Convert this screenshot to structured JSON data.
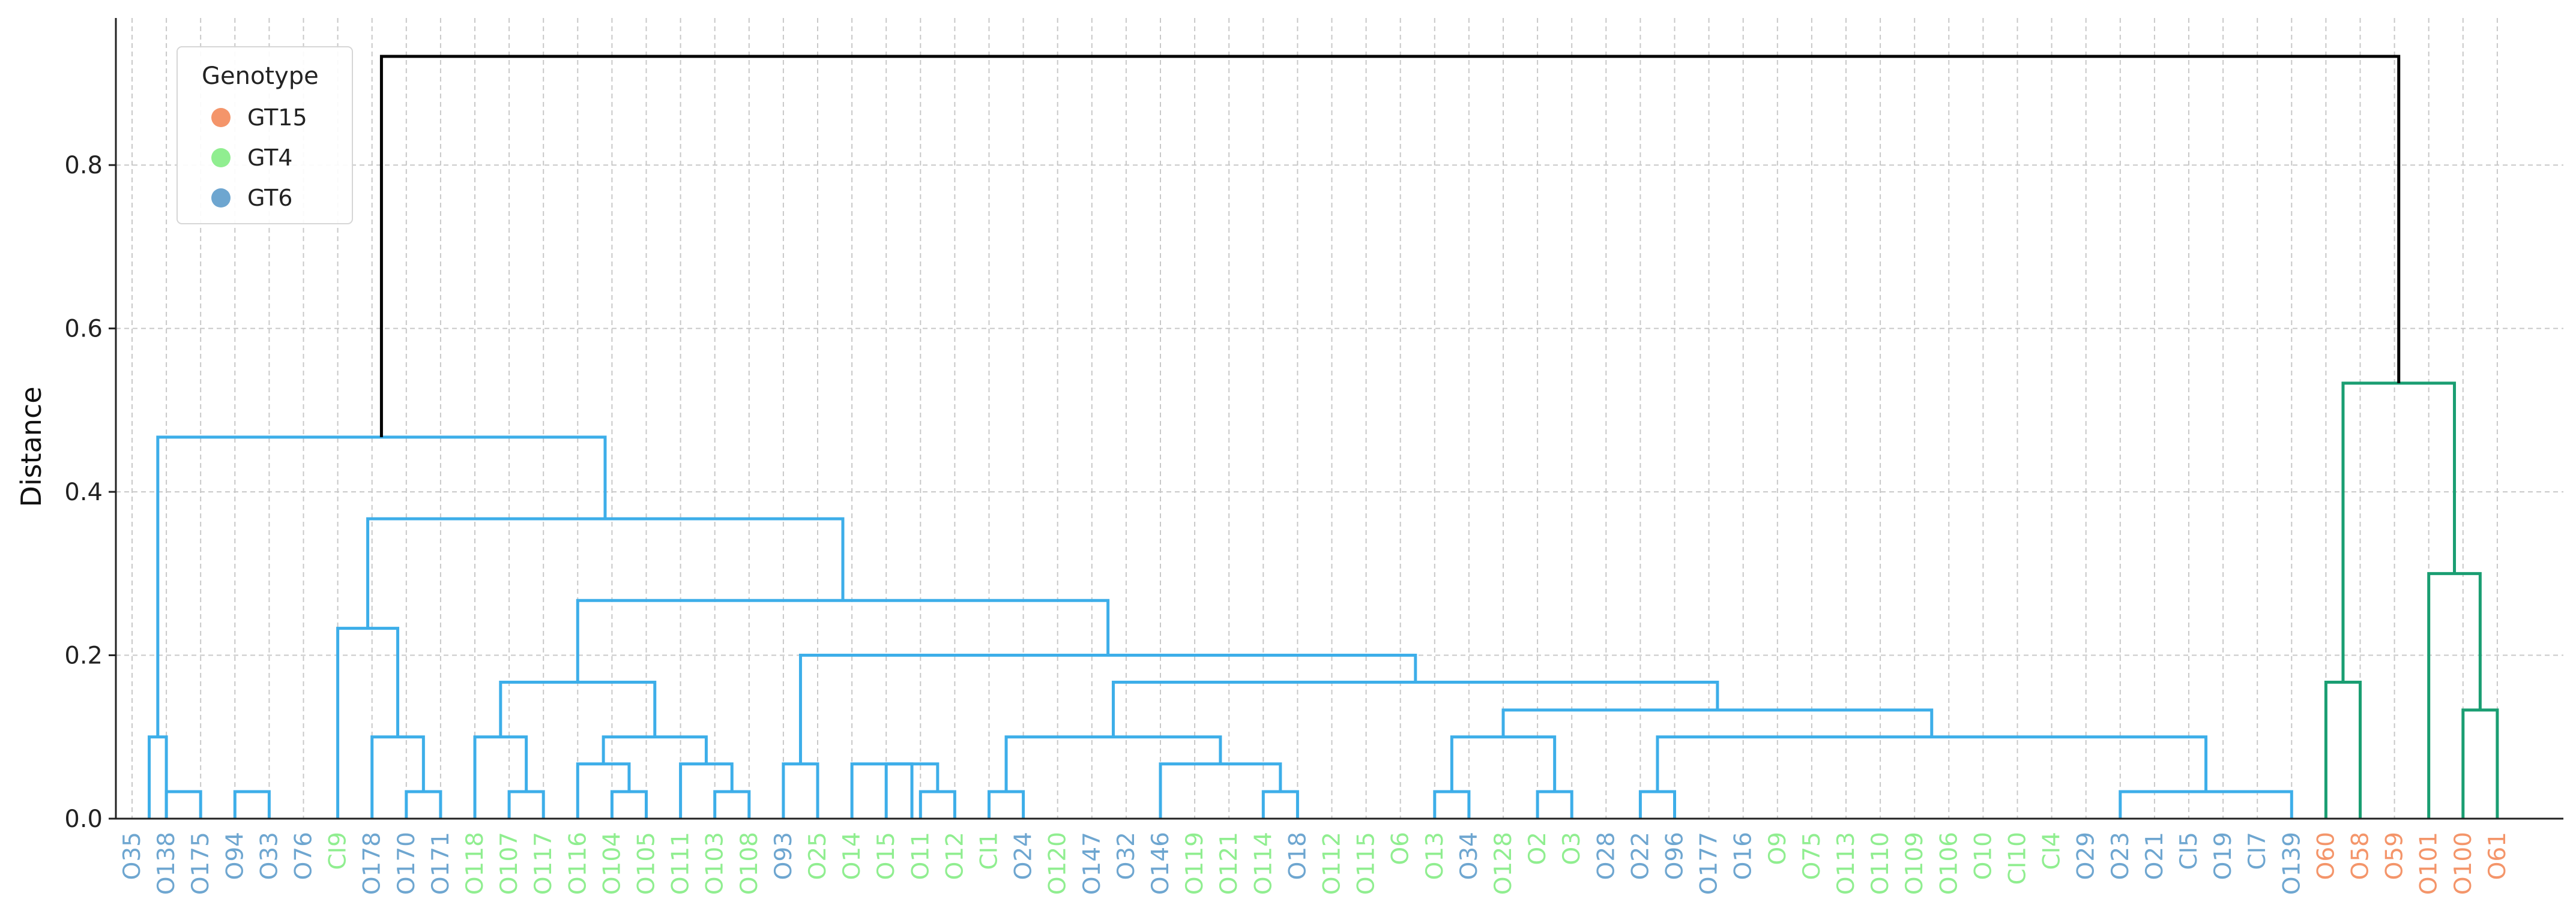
{
  "chart_data": {
    "type": "dendrogram",
    "ylabel": "Distance",
    "ylim": [
      0,
      0.98
    ],
    "yticks": [
      0.0,
      0.2,
      0.4,
      0.6,
      0.8
    ],
    "grid": true,
    "legend": {
      "title": "Genotype",
      "placement": "top-left",
      "entries": [
        {
          "label": "GT15",
          "color": "#f4956a"
        },
        {
          "label": "GT4",
          "color": "#90ee90"
        },
        {
          "label": "GT6",
          "color": "#6ea6d0"
        }
      ]
    },
    "colors": {
      "cluster_gt6_gt4": "#3daee9",
      "cluster_gt15": "#1a9e72",
      "root": "#000000"
    },
    "leaves": [
      {
        "label": "O35",
        "genotype": "GT6"
      },
      {
        "label": "O138",
        "genotype": "GT6"
      },
      {
        "label": "O175",
        "genotype": "GT6"
      },
      {
        "label": "O94",
        "genotype": "GT6"
      },
      {
        "label": "O33",
        "genotype": "GT6"
      },
      {
        "label": "O76",
        "genotype": "GT6"
      },
      {
        "label": "CI9",
        "genotype": "GT4"
      },
      {
        "label": "O178",
        "genotype": "GT6"
      },
      {
        "label": "O170",
        "genotype": "GT6"
      },
      {
        "label": "O171",
        "genotype": "GT6"
      },
      {
        "label": "O118",
        "genotype": "GT4"
      },
      {
        "label": "O107",
        "genotype": "GT4"
      },
      {
        "label": "O117",
        "genotype": "GT4"
      },
      {
        "label": "O116",
        "genotype": "GT4"
      },
      {
        "label": "O104",
        "genotype": "GT4"
      },
      {
        "label": "O105",
        "genotype": "GT4"
      },
      {
        "label": "O111",
        "genotype": "GT4"
      },
      {
        "label": "O103",
        "genotype": "GT4"
      },
      {
        "label": "O108",
        "genotype": "GT4"
      },
      {
        "label": "O93",
        "genotype": "GT6"
      },
      {
        "label": "O25",
        "genotype": "GT4"
      },
      {
        "label": "O14",
        "genotype": "GT4"
      },
      {
        "label": "O15",
        "genotype": "GT4"
      },
      {
        "label": "O11",
        "genotype": "GT4"
      },
      {
        "label": "O12",
        "genotype": "GT4"
      },
      {
        "label": "CI1",
        "genotype": "GT4"
      },
      {
        "label": "O24",
        "genotype": "GT6"
      },
      {
        "label": "O120",
        "genotype": "GT4"
      },
      {
        "label": "O147",
        "genotype": "GT6"
      },
      {
        "label": "O32",
        "genotype": "GT6"
      },
      {
        "label": "O146",
        "genotype": "GT6"
      },
      {
        "label": "O119",
        "genotype": "GT4"
      },
      {
        "label": "O121",
        "genotype": "GT4"
      },
      {
        "label": "O114",
        "genotype": "GT4"
      },
      {
        "label": "O18",
        "genotype": "GT6"
      },
      {
        "label": "O112",
        "genotype": "GT4"
      },
      {
        "label": "O115",
        "genotype": "GT4"
      },
      {
        "label": "O6",
        "genotype": "GT4"
      },
      {
        "label": "O13",
        "genotype": "GT4"
      },
      {
        "label": "O34",
        "genotype": "GT6"
      },
      {
        "label": "O128",
        "genotype": "GT4"
      },
      {
        "label": "O2",
        "genotype": "GT4"
      },
      {
        "label": "O3",
        "genotype": "GT4"
      },
      {
        "label": "O28",
        "genotype": "GT6"
      },
      {
        "label": "O22",
        "genotype": "GT6"
      },
      {
        "label": "O96",
        "genotype": "GT6"
      },
      {
        "label": "O177",
        "genotype": "GT6"
      },
      {
        "label": "O16",
        "genotype": "GT6"
      },
      {
        "label": "O9",
        "genotype": "GT4"
      },
      {
        "label": "O75",
        "genotype": "GT4"
      },
      {
        "label": "O113",
        "genotype": "GT4"
      },
      {
        "label": "O110",
        "genotype": "GT4"
      },
      {
        "label": "O109",
        "genotype": "GT4"
      },
      {
        "label": "O106",
        "genotype": "GT4"
      },
      {
        "label": "O10",
        "genotype": "GT4"
      },
      {
        "label": "CI10",
        "genotype": "GT4"
      },
      {
        "label": "CI4",
        "genotype": "GT4"
      },
      {
        "label": "O29",
        "genotype": "GT6"
      },
      {
        "label": "O23",
        "genotype": "GT6"
      },
      {
        "label": "O21",
        "genotype": "GT6"
      },
      {
        "label": "CI5",
        "genotype": "GT6"
      },
      {
        "label": "O19",
        "genotype": "GT6"
      },
      {
        "label": "CI7",
        "genotype": "GT6"
      },
      {
        "label": "O139",
        "genotype": "GT6"
      },
      {
        "label": "O60",
        "genotype": "GT15"
      },
      {
        "label": "O58",
        "genotype": "GT15"
      },
      {
        "label": "O59",
        "genotype": "GT15"
      },
      {
        "label": "O101",
        "genotype": "GT15"
      },
      {
        "label": "O100",
        "genotype": "GT15"
      },
      {
        "label": "O61",
        "genotype": "GT15"
      }
    ],
    "merges": [
      {
        "left": 1,
        "right": 2,
        "height": 0.033,
        "color": "cluster_gt6_gt4"
      },
      {
        "left": 1,
        "right": 0.5,
        "height": 0.1,
        "color": "cluster_gt6_gt4"
      },
      {
        "left": 3,
        "right": 4,
        "height": 0.033,
        "color": "cluster_gt6_gt4"
      },
      {
        "left": 8,
        "right": 9,
        "height": 0.033,
        "color": "cluster_gt6_gt4"
      },
      {
        "left": 7,
        "right": 8.5,
        "height": 0.1,
        "color": "cluster_gt6_gt4"
      },
      {
        "left": 6,
        "right": 7.75,
        "height": 0.233,
        "color": "cluster_gt6_gt4"
      },
      {
        "left": 11,
        "right": 12,
        "height": 0.033,
        "color": "cluster_gt6_gt4"
      },
      {
        "left": 10,
        "right": 11.5,
        "height": 0.1,
        "color": "cluster_gt6_gt4"
      },
      {
        "left": 14,
        "right": 15,
        "height": 0.033,
        "color": "cluster_gt6_gt4"
      },
      {
        "left": 13,
        "right": 14.5,
        "height": 0.067,
        "color": "cluster_gt6_gt4"
      },
      {
        "left": 17,
        "right": 18,
        "height": 0.033,
        "color": "cluster_gt6_gt4"
      },
      {
        "left": 16,
        "right": 17.5,
        "height": 0.067,
        "color": "cluster_gt6_gt4"
      },
      {
        "left": 13.75,
        "right": 16.75,
        "height": 0.1,
        "color": "cluster_gt6_gt4"
      },
      {
        "left": 10.75,
        "right": 15.25,
        "height": 0.167,
        "color": "cluster_gt6_gt4"
      },
      {
        "left": 23,
        "right": 24,
        "height": 0.033,
        "color": "cluster_gt6_gt4"
      },
      {
        "left": 22,
        "right": 23.5,
        "height": 0.067,
        "color": "cluster_gt6_gt4"
      },
      {
        "left": 21,
        "right": 22.75,
        "height": 0.067,
        "color": "cluster_gt6_gt4"
      },
      {
        "left": 19,
        "right": 20,
        "height": 0.067,
        "color": "cluster_gt6_gt4"
      },
      {
        "left": 25,
        "right": 26,
        "height": 0.033,
        "color": "cluster_gt6_gt4"
      },
      {
        "left": 33,
        "right": 34,
        "height": 0.033,
        "color": "cluster_gt6_gt4"
      },
      {
        "left": 30,
        "right": 33.5,
        "height": 0.067,
        "color": "cluster_gt6_gt4"
      },
      {
        "left": 25.5,
        "right": 31.75,
        "height": 0.1,
        "color": "cluster_gt6_gt4"
      },
      {
        "left": 38,
        "right": 39,
        "height": 0.033,
        "color": "cluster_gt6_gt4"
      },
      {
        "left": 41,
        "right": 42,
        "height": 0.033,
        "color": "cluster_gt6_gt4"
      },
      {
        "left": 38.5,
        "right": 41.5,
        "height": 0.1,
        "color": "cluster_gt6_gt4"
      },
      {
        "left": 44,
        "right": 45,
        "height": 0.033,
        "color": "cluster_gt6_gt4"
      },
      {
        "left": 58,
        "right": 63,
        "height": 0.033,
        "color": "cluster_gt6_gt4"
      },
      {
        "left": 44.5,
        "right": 60.5,
        "height": 0.1,
        "color": "cluster_gt6_gt4"
      },
      {
        "left": 40,
        "right": 52.5,
        "height": 0.133,
        "color": "cluster_gt6_gt4"
      },
      {
        "left": 28.625,
        "right": 46.25,
        "height": 0.167,
        "color": "cluster_gt6_gt4"
      },
      {
        "left": 19.5,
        "right": 37.44,
        "height": 0.2,
        "color": "cluster_gt6_gt4"
      },
      {
        "left": 13,
        "right": 28.47,
        "height": 0.267,
        "color": "cluster_gt6_gt4"
      },
      {
        "left": 6.875,
        "right": 20.735,
        "height": 0.367,
        "color": "cluster_gt6_gt4"
      },
      {
        "left": 0.75,
        "right": 13.8,
        "height": 0.467,
        "color": "cluster_gt6_gt4"
      },
      {
        "left": 64,
        "right": 65,
        "height": 0.167,
        "color": "cluster_gt15"
      },
      {
        "left": 68,
        "right": 69,
        "height": 0.133,
        "color": "cluster_gt15"
      },
      {
        "left": 67,
        "right": 68.5,
        "height": 0.3,
        "color": "cluster_gt15"
      },
      {
        "left": 64.5,
        "right": 67.75,
        "height": 0.533,
        "color": "cluster_gt15"
      },
      {
        "left": 7.275,
        "right": 66.125,
        "height": 0.933,
        "color": "root"
      }
    ]
  }
}
